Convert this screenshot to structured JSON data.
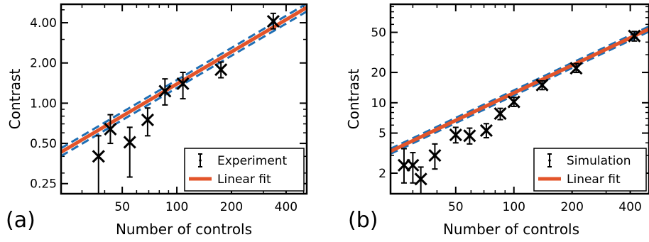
{
  "chart_data": [
    {
      "type": "scatter",
      "panel_label": "(a)",
      "xlabel": "Number of controls",
      "ylabel": "Contrast",
      "xscale": "log",
      "yscale": "log",
      "xlim": [
        23,
        520
      ],
      "ylim": [
        0.21,
        5.5
      ],
      "x_ticks": [
        50,
        100,
        200,
        400
      ],
      "x_tick_labels": [
        "50",
        "100",
        "200",
        "400"
      ],
      "y_ticks": [
        0.25,
        0.5,
        1,
        2,
        4
      ],
      "y_tick_labels": [
        "0.25",
        "0.50",
        "1.00",
        "2.00",
        "4.00"
      ],
      "series": [
        {
          "name": "Experiment",
          "marker": "x",
          "color": "#000000",
          "points": [
            {
              "x": 37,
              "y": 0.4,
              "err_lo": 0.18,
              "err_hi": 0.57
            },
            {
              "x": 43,
              "y": 0.64,
              "err_lo": 0.5,
              "err_hi": 0.82
            },
            {
              "x": 55,
              "y": 0.51,
              "err_lo": 0.28,
              "err_hi": 0.66
            },
            {
              "x": 69,
              "y": 0.75,
              "err_lo": 0.57,
              "err_hi": 0.92
            },
            {
              "x": 86,
              "y": 1.23,
              "err_lo": 0.97,
              "err_hi": 1.52
            },
            {
              "x": 108,
              "y": 1.4,
              "err_lo": 1.08,
              "err_hi": 1.7
            },
            {
              "x": 175,
              "y": 1.78,
              "err_lo": 1.55,
              "err_hi": 2.03
            },
            {
              "x": 340,
              "y": 4.1,
              "err_lo": 3.6,
              "err_hi": 4.7
            }
          ]
        }
      ],
      "fit": {
        "name": "Linear fit",
        "color": "#e3542a",
        "x0": 23,
        "y0": 0.43,
        "x1": 520,
        "y1": 5.2
      },
      "confidence_band": {
        "color": "#1f6fb4",
        "factor": 1.07
      },
      "legend_position": "bottom-right"
    },
    {
      "type": "scatter",
      "panel_label": "(b)",
      "xlabel": "Number of controls",
      "ylabel": "Contrast",
      "xscale": "log",
      "yscale": "log",
      "xlim": [
        23,
        500
      ],
      "ylim": [
        1.25,
        95
      ],
      "x_ticks": [
        50,
        100,
        200,
        400
      ],
      "x_tick_labels": [
        "50",
        "100",
        "200",
        "400"
      ],
      "y_ticks": [
        2,
        5,
        10,
        20,
        50
      ],
      "y_tick_labels": [
        "2",
        "5",
        "10",
        "20",
        "50"
      ],
      "series": [
        {
          "name": "Simulation",
          "marker": "x",
          "color": "#000000",
          "points": [
            {
              "x": 27,
              "y": 2.4,
              "err_lo": 1.6,
              "err_hi": 3.5
            },
            {
              "x": 30,
              "y": 2.4,
              "err_lo": 1.6,
              "err_hi": 3.2
            },
            {
              "x": 33,
              "y": 1.75,
              "err_lo": 1.25,
              "err_hi": 2.3
            },
            {
              "x": 39,
              "y": 3.0,
              "err_lo": 2.2,
              "err_hi": 3.9
            },
            {
              "x": 50,
              "y": 4.8,
              "err_lo": 4.0,
              "err_hi": 5.7
            },
            {
              "x": 59,
              "y": 4.7,
              "err_lo": 3.9,
              "err_hi": 5.6
            },
            {
              "x": 72,
              "y": 5.3,
              "err_lo": 4.5,
              "err_hi": 6.2
            },
            {
              "x": 85,
              "y": 7.8,
              "err_lo": 6.8,
              "err_hi": 8.8
            },
            {
              "x": 100,
              "y": 10.2,
              "err_lo": 9.2,
              "err_hi": 11.3
            },
            {
              "x": 140,
              "y": 15.0,
              "err_lo": 13.5,
              "err_hi": 16.5
            },
            {
              "x": 210,
              "y": 22.0,
              "err_lo": 20.0,
              "err_hi": 24.5
            },
            {
              "x": 420,
              "y": 46.0,
              "err_lo": 41.0,
              "err_hi": 51.0
            }
          ]
        }
      ],
      "fit": {
        "name": "Linear fit",
        "color": "#e3542a",
        "x0": 23,
        "y0": 3.3,
        "x1": 500,
        "y1": 54
      },
      "confidence_band": {
        "color": "#1f6fb4",
        "factor": 1.06
      },
      "legend_position": "bottom-right"
    }
  ]
}
